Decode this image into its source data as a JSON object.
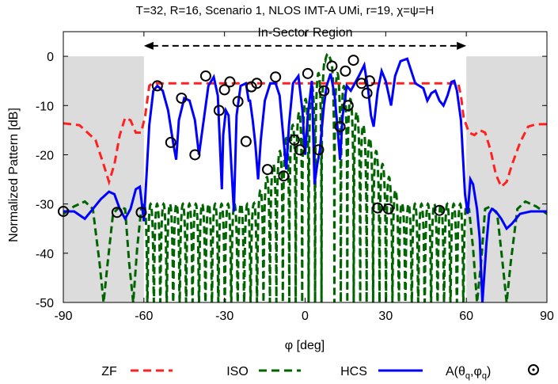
{
  "chart_data": {
    "type": "line",
    "title": "T=32, R=16, Scenario 1, NLOS IMT-A UMi, r=19, χ=ψ=H",
    "xlabel": "φ [deg]",
    "ylabel": "Normalized Pattern [dB]",
    "xlim": [
      -90,
      90
    ],
    "ylim": [
      -50,
      5
    ],
    "x_ticks": [
      -90,
      -60,
      -30,
      0,
      30,
      60,
      90
    ],
    "y_ticks": [
      -50,
      -40,
      -30,
      -20,
      -10,
      0
    ],
    "x_tick_labels": [
      "-90",
      "-60",
      "-30",
      "0",
      "30",
      "60",
      "90"
    ],
    "y_tick_labels": [
      "-50",
      "-40",
      "-30",
      "-20",
      "-10",
      "0"
    ],
    "grid": false,
    "legend_position": "bottom",
    "annotation": {
      "text": "In-Sector Region",
      "x_range": [
        -60,
        60
      ],
      "y": 1
    },
    "shaded_regions": [
      [
        -90,
        -60
      ],
      [
        60,
        90
      ]
    ],
    "colors": {
      "zf": "#ff2020",
      "iso": "#006400",
      "hcs": "#0000ff",
      "marker": "#000000",
      "shade": "#dcdcdc"
    },
    "series": [
      {
        "name": "ZF",
        "style": "dashed",
        "points": [
          [
            -90,
            -13.6
          ],
          [
            -84,
            -14
          ],
          [
            -78,
            -17
          ],
          [
            -75,
            -22
          ],
          [
            -73,
            -25.5
          ],
          [
            -71,
            -22
          ],
          [
            -69,
            -16
          ],
          [
            -67,
            -12.5
          ],
          [
            -65,
            -13
          ],
          [
            -63,
            -15.5
          ],
          [
            -61,
            -15.5
          ],
          [
            -59.5,
            -12
          ],
          [
            -58,
            -6
          ],
          [
            -57,
            -5.5
          ],
          [
            57,
            -5.5
          ],
          [
            58,
            -8
          ],
          [
            59,
            -12.5
          ],
          [
            61,
            -15.5
          ],
          [
            63,
            -16
          ],
          [
            65,
            -15
          ],
          [
            67,
            -15.5
          ],
          [
            69,
            -19
          ],
          [
            71,
            -24
          ],
          [
            73,
            -26.5
          ],
          [
            75,
            -25.5
          ],
          [
            77,
            -22
          ],
          [
            80,
            -17.5
          ],
          [
            83,
            -14.3
          ],
          [
            86,
            -13.8
          ],
          [
            90,
            -13.8
          ]
        ]
      },
      {
        "name": "ISO",
        "style": "dashed",
        "envelope": {
          "peak": 0.5,
          "center": 8.5,
          "sidelobe_floor": -30,
          "null_floor": -50,
          "lobe_width_deg": 3.2
        },
        "outer_points": [
          [
            -90,
            -32
          ],
          [
            -86,
            -30.5
          ],
          [
            -82,
            -29.5
          ],
          [
            -79,
            -31
          ],
          [
            -76.5,
            -42
          ],
          [
            -75,
            -50
          ],
          [
            -73.5,
            -42
          ],
          [
            -71.5,
            -32
          ],
          [
            -69,
            -30.5
          ],
          [
            -67,
            -31
          ],
          [
            -65.5,
            -42
          ],
          [
            -64,
            -50
          ],
          [
            -62.5,
            -39
          ],
          [
            -61,
            -31
          ],
          [
            -60,
            -30
          ]
        ]
      },
      {
        "name": "HCS",
        "style": "solid",
        "points": [
          [
            -90,
            -31.5
          ],
          [
            -86,
            -31.5
          ],
          [
            -82,
            -33
          ],
          [
            -79,
            -31
          ],
          [
            -76,
            -29
          ],
          [
            -73,
            -27.5
          ],
          [
            -71,
            -28
          ],
          [
            -69,
            -31
          ],
          [
            -67,
            -33
          ],
          [
            -65,
            -31
          ],
          [
            -63,
            -27
          ],
          [
            -61.5,
            -26.5
          ],
          [
            -60,
            -33.5
          ],
          [
            -59,
            -24
          ],
          [
            -58,
            -14
          ],
          [
            -56.5,
            -7
          ],
          [
            -55,
            -6
          ],
          [
            -53,
            -7
          ],
          [
            -51,
            -11
          ],
          [
            -49,
            -18
          ],
          [
            -48,
            -21
          ],
          [
            -47,
            -13
          ],
          [
            -45,
            -8.5
          ],
          [
            -43,
            -9
          ],
          [
            -41,
            -13
          ],
          [
            -39.5,
            -20
          ],
          [
            -38,
            -14
          ],
          [
            -36,
            -6
          ],
          [
            -34,
            -4.2
          ],
          [
            -32.5,
            -8
          ],
          [
            -31,
            -27
          ],
          [
            -30.5,
            -16
          ],
          [
            -29.5,
            -11
          ],
          [
            -28.5,
            -12
          ],
          [
            -27.5,
            -22
          ],
          [
            -26.5,
            -31.5
          ],
          [
            -25.5,
            -12
          ],
          [
            -24,
            -6
          ],
          [
            -22,
            -5.5
          ],
          [
            -21,
            -9
          ],
          [
            -20.5,
            -9
          ],
          [
            -19.5,
            -13
          ],
          [
            -18.5,
            -18
          ],
          [
            -17.5,
            -25
          ],
          [
            -16.5,
            -17
          ],
          [
            -15,
            -9
          ],
          [
            -13,
            -5.5
          ],
          [
            -11,
            -5.5
          ],
          [
            -9.5,
            -8
          ],
          [
            -8,
            -17
          ],
          [
            -7,
            -23
          ],
          [
            -6,
            -14
          ],
          [
            -4.5,
            -5.5
          ],
          [
            -2.5,
            -4
          ],
          [
            -1,
            -11
          ],
          [
            0,
            -20
          ],
          [
            1,
            -12
          ],
          [
            2.5,
            -5
          ],
          [
            3.5,
            -26
          ],
          [
            4.5,
            -22
          ],
          [
            5.5,
            -19
          ],
          [
            7,
            -10
          ],
          [
            8,
            -6
          ],
          [
            9.5,
            -3.5
          ],
          [
            11,
            -8
          ],
          [
            12,
            -14
          ],
          [
            13,
            -21
          ],
          [
            14,
            -12
          ],
          [
            15.5,
            -6
          ],
          [
            17,
            -7
          ],
          [
            18,
            -6
          ],
          [
            20,
            -4
          ],
          [
            22,
            -1.8
          ],
          [
            23.5,
            -7
          ],
          [
            24.5,
            -12
          ],
          [
            25.5,
            -14.3
          ],
          [
            27,
            -7
          ],
          [
            28.5,
            -3
          ],
          [
            30,
            -5
          ],
          [
            32,
            -10
          ],
          [
            33.5,
            -4
          ],
          [
            35.5,
            -1
          ],
          [
            38,
            -0.5
          ],
          [
            39.5,
            -3
          ],
          [
            41,
            -5.5
          ],
          [
            42.5,
            -6
          ],
          [
            44,
            -6.5
          ],
          [
            45.5,
            -9
          ],
          [
            47,
            -7.5
          ],
          [
            48.5,
            -7
          ],
          [
            50,
            -9
          ],
          [
            51.5,
            -10
          ],
          [
            53,
            -8
          ],
          [
            54.5,
            -5.2
          ],
          [
            55.5,
            -5
          ],
          [
            56.5,
            -7
          ],
          [
            58,
            -13
          ],
          [
            59.5,
            -28
          ],
          [
            60.5,
            -32
          ],
          [
            61.5,
            -25
          ],
          [
            62.5,
            -26
          ],
          [
            64,
            -31
          ],
          [
            65,
            -37
          ],
          [
            66,
            -50
          ],
          [
            67.5,
            -38
          ],
          [
            68.5,
            -32
          ],
          [
            69.5,
            -31
          ],
          [
            71,
            -31.5
          ],
          [
            73,
            -33
          ],
          [
            75,
            -35
          ],
          [
            77,
            -34
          ],
          [
            80,
            -32
          ],
          [
            84,
            -31.5
          ],
          [
            88,
            -31.5
          ],
          [
            90,
            -31.5
          ]
        ]
      }
    ],
    "markers": {
      "name": "A(θq,φq)",
      "points": [
        [
          -90,
          -31.5
        ],
        [
          -70,
          -31.7
        ],
        [
          -61,
          -31.7
        ],
        [
          -55,
          -6
        ],
        [
          -50,
          -17.5
        ],
        [
          -46,
          -8.5
        ],
        [
          -41,
          -20
        ],
        [
          -37,
          -4
        ],
        [
          -32,
          -11
        ],
        [
          -30,
          -6.8
        ],
        [
          -28,
          -5.2
        ],
        [
          -25,
          -9.2
        ],
        [
          -22,
          -17.3
        ],
        [
          -20,
          -6.2
        ],
        [
          -18,
          -5.5
        ],
        [
          -14,
          -23
        ],
        [
          -11,
          -4.2
        ],
        [
          -8,
          -24.3
        ],
        [
          -4,
          -17
        ],
        [
          -2,
          -19
        ],
        [
          1,
          -3.5
        ],
        [
          5,
          -19
        ],
        [
          7,
          -7
        ],
        [
          10,
          -2
        ],
        [
          13,
          -14.3
        ],
        [
          15,
          -3
        ],
        [
          16,
          -10
        ],
        [
          18,
          -0.8
        ],
        [
          21,
          -5.5
        ],
        [
          23,
          -7.5
        ],
        [
          24,
          -5
        ],
        [
          27,
          -30.8
        ],
        [
          31,
          -31
        ],
        [
          50,
          -31.3
        ]
      ]
    }
  },
  "legend": {
    "zf_label": "ZF",
    "iso_label": "ISO",
    "hcs_label": "HCS",
    "marker_label_main": "A(θ",
    "marker_label_sub1": "q",
    "marker_label_mid": ",φ",
    "marker_label_sub2": "q",
    "marker_label_end": ")"
  }
}
